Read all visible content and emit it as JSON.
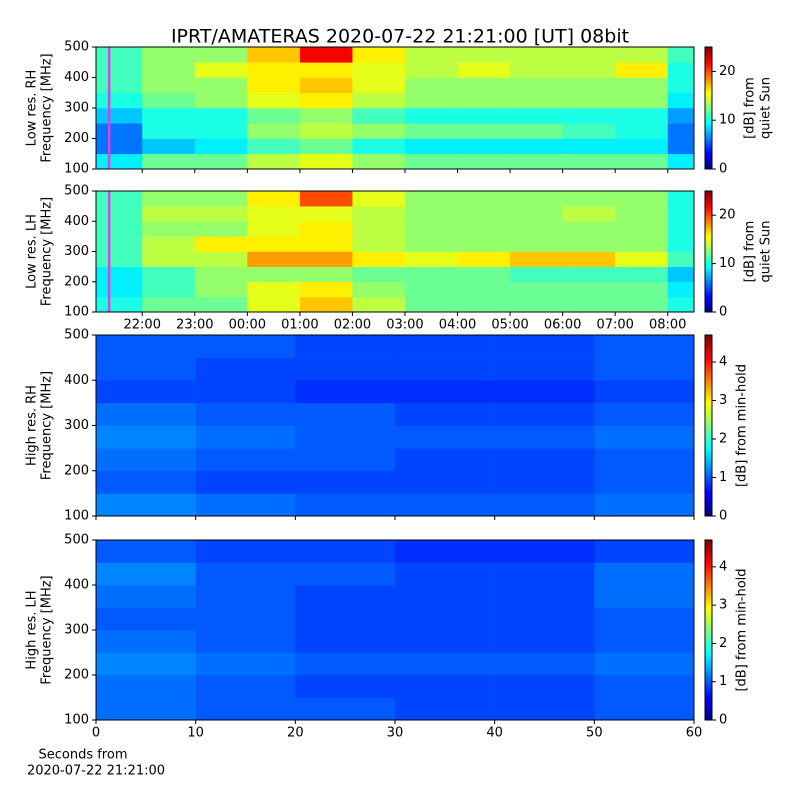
{
  "chart_data": [
    {
      "type": "heatmap",
      "title": "IPRT/AMATERAS 2020-07-22 21:21:00 [UT]   08bit",
      "ylabel": [
        "Low res. RH",
        "Frequency [MHz]"
      ],
      "xbins": [
        21.12,
        22,
        23,
        24,
        25,
        26,
        27,
        28,
        29,
        30,
        31,
        32,
        32.5
      ],
      "ybins": [
        100,
        150,
        200,
        250,
        300,
        350,
        400,
        450,
        500
      ],
      "z": [
        [
          9,
          12,
          12,
          14,
          15,
          13,
          12,
          12,
          12,
          12,
          12,
          9
        ],
        [
          6,
          8,
          9,
          11,
          12,
          10,
          9,
          9,
          9,
          9,
          9,
          6
        ],
        [
          6,
          10,
          10,
          13,
          14,
          13,
          12,
          12,
          12,
          11,
          10,
          6
        ],
        [
          8,
          10,
          10,
          12,
          13,
          11,
          10,
          10,
          10,
          10,
          10,
          7
        ],
        [
          10,
          12,
          13,
          15,
          16,
          14,
          13,
          13,
          13,
          13,
          13,
          9
        ],
        [
          11,
          13,
          13,
          16,
          17,
          15,
          13,
          13,
          13,
          13,
          13,
          10
        ],
        [
          11,
          13,
          15,
          16,
          16,
          15,
          14,
          15,
          14,
          14,
          16,
          10
        ],
        [
          11,
          13,
          13,
          17,
          22,
          16,
          14,
          14,
          14,
          14,
          14,
          11
        ]
      ],
      "xlim": [
        21.12,
        32.5
      ],
      "ylim": [
        100,
        500
      ],
      "xticks": [
        22,
        23,
        24,
        25,
        26,
        27,
        28,
        29,
        30,
        31,
        32
      ],
      "yticks": [
        100,
        200,
        300,
        400,
        500
      ],
      "markers": [
        21.37
      ],
      "marker_color": "#e040e0",
      "clim": [
        0,
        25
      ],
      "cticks": [
        0,
        10,
        20
      ],
      "clabel": [
        "[dB] from",
        "quiet Sun"
      ]
    },
    {
      "type": "heatmap",
      "ylabel": [
        "Low res. LH",
        "Frequency [MHz]"
      ],
      "xbins": [
        21.12,
        22,
        23,
        24,
        25,
        26,
        27,
        28,
        29,
        30,
        31,
        32,
        32.5
      ],
      "ybins": [
        100,
        150,
        200,
        250,
        300,
        350,
        400,
        450,
        500
      ],
      "z": [
        [
          10,
          12,
          12,
          15,
          17,
          14,
          12,
          12,
          12,
          12,
          12,
          10
        ],
        [
          9,
          11,
          13,
          15,
          16,
          13,
          12,
          12,
          12,
          12,
          12,
          9
        ],
        [
          9,
          11,
          13,
          13,
          13,
          12,
          12,
          12,
          11,
          11,
          11,
          8
        ],
        [
          11,
          14,
          14,
          18,
          18,
          16,
          15,
          16,
          17,
          17,
          15,
          11
        ],
        [
          11,
          14,
          16,
          16,
          16,
          14,
          13,
          13,
          13,
          13,
          13,
          10
        ],
        [
          11,
          13,
          13,
          15,
          16,
          14,
          13,
          13,
          13,
          13,
          13,
          10
        ],
        [
          11,
          14,
          14,
          15,
          15,
          14,
          13,
          13,
          13,
          14,
          13,
          10
        ],
        [
          11,
          13,
          13,
          16,
          20,
          15,
          13,
          13,
          13,
          13,
          13,
          10
        ]
      ],
      "xlim": [
        21.12,
        32.5
      ],
      "ylim": [
        100,
        500
      ],
      "xticks": [
        {
          "value": 22,
          "label": "22:00"
        },
        {
          "value": 23,
          "label": "23:00"
        },
        {
          "value": 24,
          "label": "00:00"
        },
        {
          "value": 25,
          "label": "01:00"
        },
        {
          "value": 26,
          "label": "02:00"
        },
        {
          "value": 27,
          "label": "03:00"
        },
        {
          "value": 28,
          "label": "04:00"
        },
        {
          "value": 29,
          "label": "05:00"
        },
        {
          "value": 30,
          "label": "06:00"
        },
        {
          "value": 31,
          "label": "07:00"
        },
        {
          "value": 32,
          "label": "08:00"
        }
      ],
      "yticks": [
        100,
        200,
        300,
        400,
        500
      ],
      "markers": [
        21.37
      ],
      "marker_color": "#e040e0",
      "clim": [
        0,
        25
      ],
      "cticks": [
        0,
        10,
        20
      ],
      "clabel": [
        "[dB] from",
        "quiet Sun"
      ]
    },
    {
      "type": "heatmap",
      "ylabel": [
        "High res. RH",
        "Frequency [MHz]"
      ],
      "xbins": [
        0,
        10,
        20,
        30,
        40,
        50,
        60
      ],
      "ybins": [
        100,
        150,
        200,
        250,
        300,
        350,
        400,
        450,
        500
      ],
      "z": [
        [
          1.2,
          1.1,
          1.0,
          1.0,
          1.0,
          1.1
        ],
        [
          1.0,
          0.9,
          0.9,
          0.9,
          0.9,
          1.0
        ],
        [
          1.1,
          1.0,
          1.0,
          0.9,
          0.9,
          1.0
        ],
        [
          1.2,
          1.1,
          1.0,
          1.0,
          1.0,
          1.1
        ],
        [
          1.1,
          1.0,
          1.0,
          0.9,
          0.9,
          1.0
        ],
        [
          0.9,
          0.9,
          0.8,
          0.8,
          0.8,
          0.9
        ],
        [
          1.0,
          0.9,
          0.9,
          0.9,
          0.9,
          1.0
        ],
        [
          1.0,
          1.0,
          0.9,
          0.9,
          0.9,
          1.0
        ]
      ],
      "xlim": [
        0,
        60
      ],
      "ylim": [
        100,
        500
      ],
      "xticks": [
        0,
        10,
        20,
        30,
        40,
        50,
        60
      ],
      "yticks": [
        100,
        200,
        300,
        400,
        500
      ],
      "clim": [
        0,
        4.7
      ],
      "cticks": [
        0,
        1,
        2,
        3,
        4
      ],
      "clabel": [
        "[dB] from min-hold"
      ]
    },
    {
      "type": "heatmap",
      "ylabel": [
        "High res. LH",
        "Frequency [MHz]"
      ],
      "xlabel": [
        "Seconds from",
        "2020-07-22 21:21:00"
      ],
      "xbins": [
        0,
        10,
        20,
        30,
        40,
        50,
        60
      ],
      "ybins": [
        100,
        150,
        200,
        250,
        300,
        350,
        400,
        450,
        500
      ],
      "z": [
        [
          1.1,
          1.0,
          1.0,
          0.9,
          0.9,
          1.0
        ],
        [
          1.1,
          1.0,
          0.9,
          0.9,
          0.9,
          1.0
        ],
        [
          1.2,
          1.1,
          1.0,
          1.0,
          1.0,
          1.1
        ],
        [
          1.1,
          1.0,
          0.9,
          0.9,
          0.9,
          1.0
        ],
        [
          1.0,
          1.0,
          0.9,
          0.9,
          0.9,
          1.0
        ],
        [
          1.1,
          1.0,
          0.9,
          0.9,
          0.9,
          1.1
        ],
        [
          1.2,
          1.0,
          1.0,
          0.9,
          0.9,
          1.1
        ],
        [
          1.0,
          0.9,
          0.9,
          0.8,
          0.8,
          0.9
        ]
      ],
      "xlim": [
        0,
        60
      ],
      "ylim": [
        100,
        500
      ],
      "xticks": [
        0,
        10,
        20,
        30,
        40,
        50,
        60
      ],
      "yticks": [
        100,
        200,
        300,
        400,
        500
      ],
      "clim": [
        0,
        4.7
      ],
      "cticks": [
        0,
        1,
        2,
        3,
        4
      ],
      "clabel": [
        "[dB] from min-hold"
      ]
    }
  ]
}
